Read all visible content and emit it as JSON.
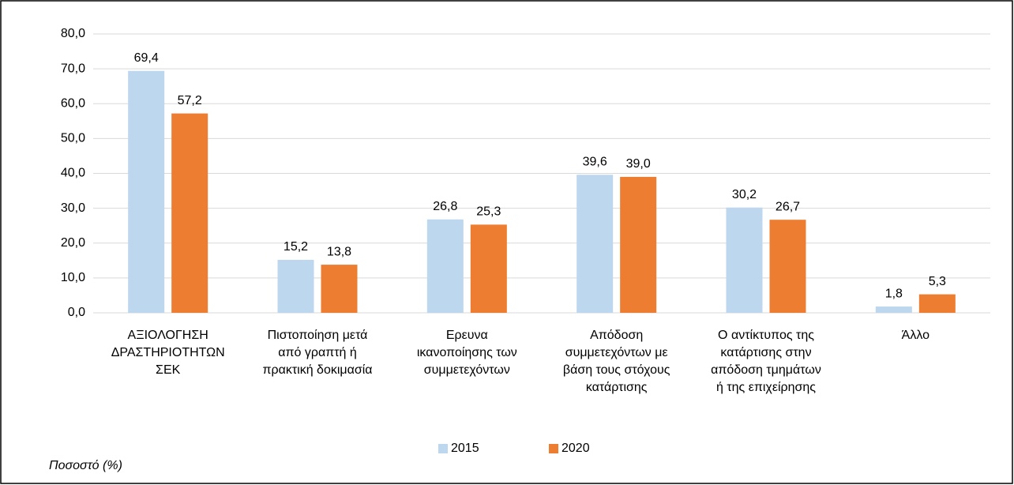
{
  "chart_data": {
    "type": "bar",
    "categories": [
      "ΑΞΙΟΛΟΓΗΣΗ\nΔΡΑΣΤΗΡΙΟΤΗΤΩΝ\nΣΕΚ",
      "Πιστοποίηση μετά\nαπό γραπτή ή\nπρακτική δοκιμασία",
      "Ερευνα\nικανοποίησης των\nσυμμετεχόντων",
      "Απόδοση\nσυμμετεχόντων με\nβάση τους στόχους\nκατάρτισης",
      "Ο αντίκτυπος της\nκατάρτισης στην\nαπόδοση τμημάτων\nή της επιχείρησης",
      "Άλλο"
    ],
    "series": [
      {
        "name": "2015",
        "color": "#bdd7ee",
        "values": [
          69.4,
          15.2,
          26.8,
          39.6,
          30.2,
          1.8
        ],
        "value_labels": [
          "69,4",
          "15,2",
          "26,8",
          "39,6",
          "30,2",
          "1,8"
        ]
      },
      {
        "name": "2020",
        "color": "#ed7d31",
        "values": [
          57.2,
          13.8,
          25.3,
          39.0,
          26.7,
          5.3
        ],
        "value_labels": [
          "57,2",
          "13,8",
          "25,3",
          "39,0",
          "26,7",
          "5,3"
        ]
      }
    ],
    "ylim": [
      0,
      80
    ],
    "yticks": [
      {
        "value": 0,
        "label": "0,0"
      },
      {
        "value": 10,
        "label": "10,0"
      },
      {
        "value": 20,
        "label": "20,0"
      },
      {
        "value": 30,
        "label": "30,0"
      },
      {
        "value": 40,
        "label": "40,0"
      },
      {
        "value": 50,
        "label": "50,0"
      },
      {
        "value": 60,
        "label": "60,0"
      },
      {
        "value": 70,
        "label": "70,0"
      },
      {
        "value": 80,
        "label": "80,0"
      }
    ],
    "grid": true,
    "legend": "bottom",
    "annotation": "Ποσοστό (%)"
  }
}
